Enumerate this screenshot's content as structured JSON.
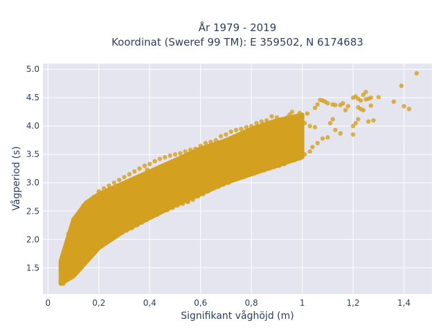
{
  "chart_data": {
    "type": "scatter",
    "title_line1": "År 1979 - 2019",
    "title_line2": "Koordinat (Sweref 99 TM): E 359502, N 6174683",
    "xlabel": "Signifikant våghöjd (m)",
    "ylabel": "Vågperiod (s)",
    "xlim": [
      -0.02,
      1.51
    ],
    "ylim": [
      1.04,
      5.1
    ],
    "x_ticks": [
      0,
      0.2,
      0.4,
      0.6,
      0.8,
      1,
      1.2,
      1.4
    ],
    "x_tick_labels": [
      "0",
      "0,2",
      "0,4",
      "0,6",
      "0,8",
      "1",
      "1,2",
      "1,4"
    ],
    "y_ticks": [
      1.5,
      2.0,
      2.5,
      3.0,
      3.5,
      4.0,
      4.5,
      5.0
    ],
    "y_tick_labels": [
      "1.5",
      "2.0",
      "2.5",
      "3.0",
      "3.5",
      "4.0",
      "4.5",
      "5.0"
    ],
    "grid": true,
    "marker_color": "#d4a020",
    "background_color": "#e5e5f0",
    "band": {
      "x": [
        0.05,
        0.1,
        0.15,
        0.2,
        0.3,
        0.4,
        0.5,
        0.6,
        0.7,
        0.8,
        0.9,
        1.0
      ],
      "y_low": [
        1.22,
        1.35,
        1.6,
        1.85,
        2.15,
        2.38,
        2.6,
        2.8,
        3.0,
        3.15,
        3.3,
        3.45
      ],
      "y_high": [
        1.62,
        2.35,
        2.65,
        2.8,
        3.0,
        3.2,
        3.4,
        3.6,
        3.75,
        3.95,
        4.1,
        4.2
      ]
    },
    "points": [
      [
        1.45,
        4.93
      ],
      [
        1.39,
        4.71
      ],
      [
        1.42,
        4.3
      ],
      [
        1.4,
        4.35
      ],
      [
        1.36,
        4.43
      ],
      [
        1.3,
        4.51
      ],
      [
        1.27,
        4.5
      ],
      [
        1.26,
        4.48
      ],
      [
        1.25,
        4.6
      ],
      [
        1.27,
        4.36
      ],
      [
        1.28,
        4.1
      ],
      [
        1.26,
        4.08
      ],
      [
        1.21,
        4.52
      ],
      [
        1.2,
        4.5
      ],
      [
        1.22,
        4.48
      ],
      [
        1.24,
        4.55
      ],
      [
        1.23,
        4.45
      ],
      [
        1.25,
        4.47
      ],
      [
        1.22,
        4.33
      ],
      [
        1.23,
        4.3
      ],
      [
        1.24,
        4.28
      ],
      [
        1.22,
        4.12
      ],
      [
        1.21,
        4.05
      ],
      [
        1.2,
        3.85
      ],
      [
        1.2,
        4.0
      ],
      [
        1.18,
        4.35
      ],
      [
        1.17,
        4.28
      ],
      [
        1.16,
        4.4
      ],
      [
        1.15,
        4.37
      ],
      [
        1.13,
        4.37
      ],
      [
        1.12,
        4.38
      ],
      [
        1.1,
        4.4
      ],
      [
        1.09,
        4.43
      ],
      [
        1.08,
        4.45
      ],
      [
        1.07,
        4.46
      ],
      [
        1.06,
        4.38
      ],
      [
        1.05,
        4.32
      ],
      [
        1.12,
        4.12
      ],
      [
        1.11,
        4.05
      ],
      [
        1.13,
        3.93
      ],
      [
        1.15,
        3.87
      ],
      [
        1.1,
        3.8
      ],
      [
        1.08,
        3.78
      ],
      [
        1.05,
        3.98
      ],
      [
        1.03,
        4.0
      ],
      [
        1.02,
        4.22
      ],
      [
        1.01,
        4.05
      ],
      [
        1.0,
        3.73
      ],
      [
        0.99,
        4.23
      ],
      [
        0.98,
        4.1
      ],
      [
        0.96,
        4.25
      ],
      [
        0.95,
        4.2
      ],
      [
        0.94,
        4.15
      ],
      [
        0.93,
        3.65
      ],
      [
        0.92,
        4.08
      ],
      [
        0.9,
        4.15
      ],
      [
        0.88,
        4.17
      ],
      [
        0.86,
        4.1
      ],
      [
        0.84,
        4.08
      ],
      [
        0.82,
        4.05
      ],
      [
        0.8,
        4.0
      ],
      [
        0.78,
        3.98
      ],
      [
        0.76,
        3.95
      ],
      [
        0.74,
        3.93
      ],
      [
        0.72,
        3.9
      ],
      [
        0.7,
        3.85
      ],
      [
        0.68,
        3.82
      ],
      [
        0.66,
        3.75
      ],
      [
        0.64,
        3.72
      ],
      [
        0.62,
        3.7
      ],
      [
        0.6,
        3.65
      ],
      [
        0.58,
        3.6
      ],
      [
        0.56,
        3.58
      ],
      [
        0.54,
        3.55
      ],
      [
        0.52,
        3.52
      ],
      [
        0.5,
        3.5
      ],
      [
        0.48,
        3.48
      ],
      [
        0.46,
        3.45
      ],
      [
        0.44,
        3.42
      ],
      [
        0.42,
        3.38
      ],
      [
        0.4,
        3.33
      ],
      [
        0.38,
        3.3
      ],
      [
        0.36,
        3.25
      ],
      [
        0.34,
        3.2
      ],
      [
        0.32,
        3.15
      ],
      [
        0.3,
        3.1
      ],
      [
        0.28,
        3.05
      ],
      [
        0.26,
        3.0
      ],
      [
        0.24,
        2.95
      ],
      [
        0.22,
        2.9
      ],
      [
        0.2,
        2.85
      ],
      [
        0.18,
        2.75
      ],
      [
        0.16,
        2.68
      ],
      [
        0.14,
        2.6
      ],
      [
        0.12,
        2.45
      ],
      [
        0.1,
        2.35
      ],
      [
        0.08,
        2.1
      ],
      [
        0.06,
        1.62
      ],
      [
        0.05,
        1.45
      ],
      [
        0.05,
        1.25
      ],
      [
        0.06,
        1.22
      ],
      [
        0.07,
        1.3
      ],
      [
        0.09,
        1.35
      ],
      [
        0.11,
        1.42
      ],
      [
        0.13,
        1.5
      ],
      [
        0.15,
        1.62
      ],
      [
        0.17,
        1.72
      ],
      [
        0.19,
        1.8
      ],
      [
        0.21,
        1.88
      ],
      [
        0.23,
        1.95
      ],
      [
        0.25,
        2.0
      ],
      [
        0.27,
        2.06
      ],
      [
        0.29,
        2.12
      ],
      [
        0.31,
        2.16
      ],
      [
        0.33,
        2.2
      ],
      [
        0.35,
        2.25
      ],
      [
        0.37,
        2.3
      ],
      [
        0.39,
        2.35
      ],
      [
        0.41,
        2.4
      ],
      [
        0.43,
        2.44
      ],
      [
        0.45,
        2.5
      ],
      [
        0.47,
        2.52
      ],
      [
        0.49,
        2.56
      ],
      [
        0.51,
        2.6
      ],
      [
        0.53,
        2.63
      ],
      [
        0.55,
        2.66
      ],
      [
        0.57,
        2.7
      ],
      [
        0.59,
        2.76
      ],
      [
        0.61,
        2.8
      ],
      [
        0.63,
        2.85
      ],
      [
        0.65,
        2.9
      ],
      [
        0.67,
        2.93
      ],
      [
        0.69,
        2.97
      ],
      [
        0.71,
        3.0
      ],
      [
        0.73,
        3.05
      ],
      [
        0.75,
        3.08
      ],
      [
        0.77,
        3.1
      ],
      [
        0.79,
        3.14
      ],
      [
        0.81,
        3.16
      ],
      [
        0.83,
        3.2
      ],
      [
        0.85,
        3.22
      ],
      [
        0.87,
        3.25
      ],
      [
        0.89,
        3.28
      ],
      [
        0.91,
        3.3
      ],
      [
        0.93,
        3.33
      ],
      [
        0.95,
        3.38
      ],
      [
        0.97,
        3.4
      ],
      [
        0.99,
        3.43
      ],
      [
        1.01,
        3.5
      ],
      [
        1.03,
        3.55
      ],
      [
        1.04,
        3.63
      ],
      [
        1.06,
        3.7
      ],
      [
        0.55,
        2.67
      ],
      [
        0.44,
        3.15
      ],
      [
        0.39,
        3.23
      ]
    ]
  }
}
